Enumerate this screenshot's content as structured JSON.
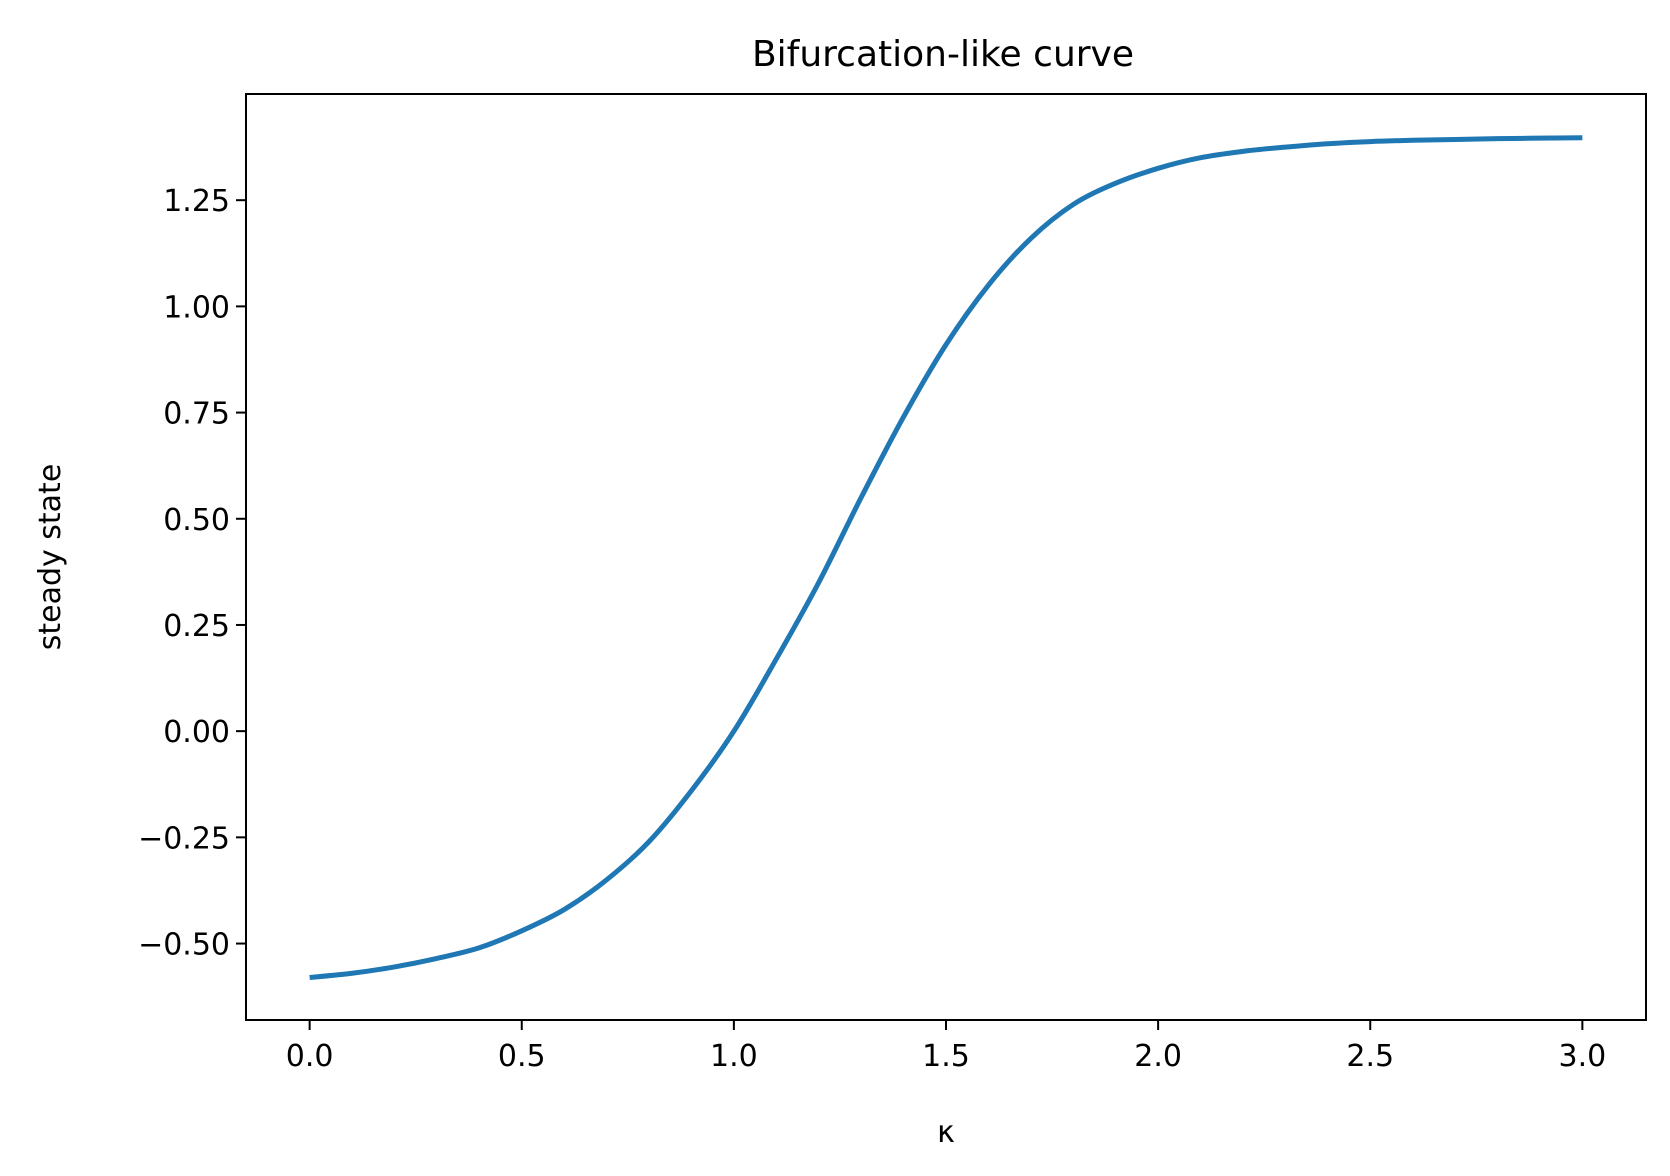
{
  "chart_data": {
    "type": "line",
    "title": "Bifurcation-like curve",
    "xlabel": "κ",
    "ylabel": "steady state",
    "xlim": [
      -0.15,
      3.15
    ],
    "ylim": [
      -0.68,
      1.5
    ],
    "xticks": [
      0.0,
      0.5,
      1.0,
      1.5,
      2.0,
      2.5,
      3.0
    ],
    "xtick_labels": [
      "0.0",
      "0.5",
      "1.0",
      "1.5",
      "2.0",
      "2.5",
      "3.0"
    ],
    "yticks": [
      -0.5,
      -0.25,
      0.0,
      0.25,
      0.5,
      0.75,
      1.0,
      1.25
    ],
    "ytick_labels": [
      "−0.50",
      "−0.25",
      "0.00",
      "0.25",
      "0.50",
      "0.75",
      "1.00",
      "1.25"
    ],
    "grid": false,
    "series": [
      {
        "color": "#1f77b4",
        "x": [
          0.0,
          0.1,
          0.2,
          0.3,
          0.4,
          0.5,
          0.6,
          0.7,
          0.8,
          0.9,
          1.0,
          1.1,
          1.2,
          1.3,
          1.4,
          1.5,
          1.6,
          1.7,
          1.8,
          1.9,
          2.0,
          2.1,
          2.2,
          2.3,
          2.4,
          2.5,
          2.6,
          2.7,
          2.8,
          2.9,
          3.0
        ],
        "y": [
          -0.58,
          -0.57,
          -0.555,
          -0.535,
          -0.51,
          -0.47,
          -0.42,
          -0.35,
          -0.26,
          -0.14,
          0.0,
          0.17,
          0.35,
          0.55,
          0.74,
          0.91,
          1.05,
          1.16,
          1.24,
          1.29,
          1.325,
          1.35,
          1.365,
          1.375,
          1.383,
          1.388,
          1.391,
          1.393,
          1.395,
          1.396,
          1.397
        ]
      }
    ]
  }
}
